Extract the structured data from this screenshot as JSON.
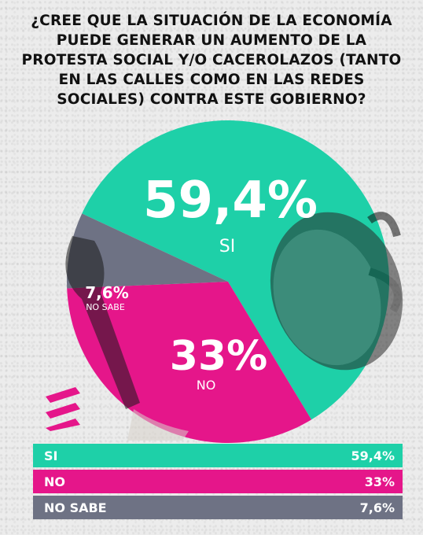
{
  "title": "¿CREE QUE LA SITUACIÓN DE LA ECONOMÍA PUEDE GENERAR UN AUMENTO DE LA PROTESTA SOCIAL Y/O CACEROLAZOS (TANTO EN LAS CALLES COMO EN LAS REDES SOCIALES) CONTRA ESTE GOBIERNO?",
  "colors": {
    "si": "#1ed0a8",
    "no": "#e5168a",
    "no_sabe": "#6e7284"
  },
  "chart_data": {
    "type": "pie",
    "title": "¿CREE QUE LA SITUACIÓN DE LA ECONOMÍA PUEDE GENERAR UN AUMENTO DE LA PROTESTA SOCIAL Y/O CACEROLAZOS (TANTO EN LAS CALLES COMO EN LAS REDES SOCIALES) CONTRA ESTE GOBIERNO?",
    "categories": [
      "SI",
      "NO",
      "NO SABE"
    ],
    "values": [
      59.4,
      33,
      7.6
    ],
    "value_labels": [
      "59,4%",
      "33%",
      "7,6%"
    ],
    "colors": [
      "#1ed0a8",
      "#e5168a",
      "#6e7284"
    ]
  },
  "table": {
    "rows": [
      {
        "label": "SI",
        "value": "59,4%",
        "color": "#1ed0a8"
      },
      {
        "label": "NO",
        "value": "33%",
        "color": "#e5168a"
      },
      {
        "label": "NO SABE",
        "value": "7,6%",
        "color": "#6e7284"
      }
    ]
  }
}
